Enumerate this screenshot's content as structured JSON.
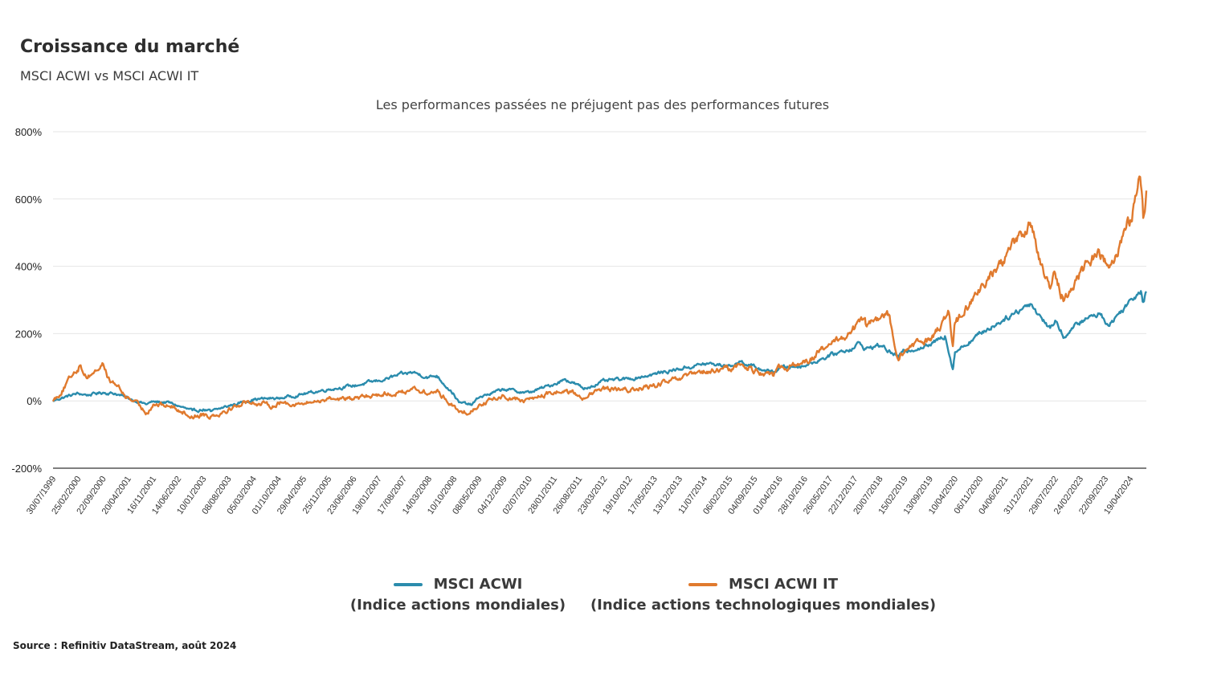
{
  "header": {
    "title": "Croissance du marché",
    "subtitle": "MSCI ACWI vs MSCI ACWI IT",
    "note": "Les performances passées ne préjugent pas des performances futures"
  },
  "source": "Source : Refinitiv DataStream, août 2024",
  "legend": [
    {
      "name": "MSCI ACWI",
      "description": "(Indice actions mondiales)",
      "color": "#2b8cad"
    },
    {
      "name": "MSCI ACWI IT",
      "description": "(Indice actions technologiques mondiales)",
      "color": "#e07a2e"
    }
  ],
  "chart_data": {
    "type": "line",
    "ylim": [
      -200,
      800
    ],
    "y_ticks": [
      800,
      600,
      400,
      200,
      0,
      -200
    ],
    "y_tick_labels": [
      "800%",
      "600%",
      "400%",
      "200%",
      "0%",
      "-200%"
    ],
    "x_range": [
      "1999-07-30",
      "2024-08-31"
    ],
    "x_ticks": [
      "30/07/1999",
      "25/02/2000",
      "22/09/2000",
      "20/04/2001",
      "16/11/2001",
      "14/06/2002",
      "10/01/2003",
      "08/08/2003",
      "05/03/2004",
      "01/10/2004",
      "29/04/2005",
      "25/11/2005",
      "23/06/2006",
      "19/01/2007",
      "17/08/2007",
      "14/03/2008",
      "10/10/2008",
      "08/05/2009",
      "04/12/2009",
      "02/07/2010",
      "28/01/2011",
      "26/08/2011",
      "23/03/2012",
      "19/10/2012",
      "17/05/2013",
      "13/12/2013",
      "11/07/2014",
      "06/02/2015",
      "04/09/2015",
      "01/04/2016",
      "28/10/2016",
      "26/05/2017",
      "22/12/2017",
      "20/07/2018",
      "15/02/2019",
      "13/09/2019",
      "10/04/2020",
      "06/11/2020",
      "04/06/2021",
      "31/12/2021",
      "29/07/2022",
      "24/02/2023",
      "22/09/2023",
      "19/04/2024"
    ],
    "grid": true,
    "legend_position": "bottom",
    "series": [
      {
        "name": "MSCI ACWI",
        "color": "#2b8cad",
        "points": [
          [
            "1999-07-30",
            0
          ],
          [
            "1999-10-15",
            10
          ],
          [
            "2000-02-25",
            22
          ],
          [
            "2000-05-15",
            18
          ],
          [
            "2000-09-22",
            25
          ],
          [
            "2000-12-29",
            22
          ],
          [
            "2001-04-20",
            8
          ],
          [
            "2001-09-21",
            -10
          ],
          [
            "2001-11-16",
            -2
          ],
          [
            "2002-03-29",
            -5
          ],
          [
            "2002-06-14",
            -15
          ],
          [
            "2002-10-10",
            -30
          ],
          [
            "2003-01-10",
            -25
          ],
          [
            "2003-03-12",
            -32
          ],
          [
            "2003-08-08",
            -15
          ],
          [
            "2004-03-05",
            5
          ],
          [
            "2004-10-01",
            8
          ],
          [
            "2005-04-29",
            20
          ],
          [
            "2005-11-25",
            35
          ],
          [
            "2006-06-23",
            45
          ],
          [
            "2007-01-19",
            60
          ],
          [
            "2007-08-17",
            80
          ],
          [
            "2007-10-31",
            85
          ],
          [
            "2008-03-14",
            70
          ],
          [
            "2008-05-19",
            75
          ],
          [
            "2008-10-10",
            20
          ],
          [
            "2008-11-21",
            -5
          ],
          [
            "2009-03-09",
            -12
          ],
          [
            "2009-05-08",
            10
          ],
          [
            "2009-12-04",
            35
          ],
          [
            "2010-05-25",
            25
          ],
          [
            "2010-07-02",
            25
          ],
          [
            "2011-01-28",
            50
          ],
          [
            "2011-05-01",
            65
          ],
          [
            "2011-08-26",
            45
          ],
          [
            "2011-10-04",
            35
          ],
          [
            "2012-03-23",
            60
          ],
          [
            "2012-10-19",
            65
          ],
          [
            "2013-05-17",
            80
          ],
          [
            "2013-12-13",
            95
          ],
          [
            "2014-07-11",
            110
          ],
          [
            "2015-02-06",
            105
          ],
          [
            "2015-05-21",
            118
          ],
          [
            "2015-09-04",
            100
          ],
          [
            "2016-02-11",
            85
          ],
          [
            "2016-04-01",
            98
          ],
          [
            "2016-10-28",
            105
          ],
          [
            "2017-05-26",
            135
          ],
          [
            "2017-12-22",
            160
          ],
          [
            "2018-01-26",
            172
          ],
          [
            "2018-03-23",
            155
          ],
          [
            "2018-07-20",
            165
          ],
          [
            "2018-12-24",
            130
          ],
          [
            "2019-02-15",
            150
          ],
          [
            "2019-09-13",
            165
          ],
          [
            "2020-01-17",
            195
          ],
          [
            "2020-03-23",
            95
          ],
          [
            "2020-04-10",
            145
          ],
          [
            "2020-11-06",
            200
          ],
          [
            "2021-06-04",
            245
          ],
          [
            "2021-12-31",
            290
          ],
          [
            "2022-06-17",
            215
          ],
          [
            "2022-07-29",
            240
          ],
          [
            "2022-10-12",
            190
          ],
          [
            "2023-02-24",
            235
          ],
          [
            "2023-07-31",
            260
          ],
          [
            "2023-10-27",
            225
          ],
          [
            "2024-04-19",
            300
          ],
          [
            "2024-07-16",
            330
          ],
          [
            "2024-08-05",
            295
          ],
          [
            "2024-08-31",
            325
          ]
        ]
      },
      {
        "name": "MSCI ACWI IT",
        "color": "#e07a2e",
        "points": [
          [
            "1999-07-30",
            0
          ],
          [
            "1999-10-15",
            30
          ],
          [
            "2000-01-14",
            80
          ],
          [
            "2000-03-10",
            105
          ],
          [
            "2000-05-15",
            70
          ],
          [
            "2000-07-17",
            90
          ],
          [
            "2000-09-22",
            110
          ],
          [
            "2000-11-15",
            60
          ],
          [
            "2001-01-15",
            45
          ],
          [
            "2001-04-04",
            10
          ],
          [
            "2001-06-01",
            0
          ],
          [
            "2001-09-21",
            -35
          ],
          [
            "2001-11-16",
            -10
          ],
          [
            "2002-03-29",
            -15
          ],
          [
            "2002-06-14",
            -25
          ],
          [
            "2002-10-10",
            -48
          ],
          [
            "2003-01-10",
            -38
          ],
          [
            "2003-03-12",
            -45
          ],
          [
            "2003-08-08",
            -25
          ],
          [
            "2004-01-20",
            0
          ],
          [
            "2004-03-05",
            -5
          ],
          [
            "2004-08-13",
            -15
          ],
          [
            "2004-10-01",
            -5
          ],
          [
            "2005-04-29",
            -10
          ],
          [
            "2005-11-25",
            8
          ],
          [
            "2006-06-23",
            5
          ],
          [
            "2007-01-19",
            20
          ],
          [
            "2007-08-17",
            25
          ],
          [
            "2007-10-31",
            40
          ],
          [
            "2008-03-14",
            20
          ],
          [
            "2008-05-19",
            30
          ],
          [
            "2008-10-10",
            -15
          ],
          [
            "2008-11-21",
            -35
          ],
          [
            "2009-03-09",
            -30
          ],
          [
            "2009-05-08",
            -10
          ],
          [
            "2009-12-04",
            15
          ],
          [
            "2010-05-25",
            0
          ],
          [
            "2010-07-02",
            5
          ],
          [
            "2011-01-28",
            25
          ],
          [
            "2011-05-01",
            30
          ],
          [
            "2011-08-26",
            15
          ],
          [
            "2011-10-04",
            10
          ],
          [
            "2012-03-23",
            35
          ],
          [
            "2012-10-19",
            30
          ],
          [
            "2013-05-17",
            45
          ],
          [
            "2013-12-13",
            65
          ],
          [
            "2014-07-11",
            85
          ],
          [
            "2015-02-06",
            95
          ],
          [
            "2015-05-21",
            108
          ],
          [
            "2015-09-04",
            90
          ],
          [
            "2016-02-11",
            75
          ],
          [
            "2016-04-01",
            95
          ],
          [
            "2016-10-28",
            115
          ],
          [
            "2017-05-26",
            165
          ],
          [
            "2017-12-22",
            215
          ],
          [
            "2018-03-13",
            245
          ],
          [
            "2018-04-02",
            220
          ],
          [
            "2018-07-20",
            245
          ],
          [
            "2018-10-03",
            255
          ],
          [
            "2018-12-24",
            120
          ],
          [
            "2019-02-15",
            150
          ],
          [
            "2019-09-13",
            185
          ],
          [
            "2020-02-19",
            260
          ],
          [
            "2020-03-23",
            165
          ],
          [
            "2020-04-10",
            230
          ],
          [
            "2020-11-06",
            330
          ],
          [
            "2021-06-04",
            430
          ],
          [
            "2021-12-31",
            530
          ],
          [
            "2022-03-14",
            420
          ],
          [
            "2022-06-17",
            330
          ],
          [
            "2022-07-29",
            380
          ],
          [
            "2022-10-12",
            300
          ],
          [
            "2023-02-24",
            380
          ],
          [
            "2023-07-31",
            450
          ],
          [
            "2023-10-27",
            400
          ],
          [
            "2024-04-19",
            540
          ],
          [
            "2024-07-10",
            660
          ],
          [
            "2024-08-05",
            540
          ],
          [
            "2024-08-31",
            625
          ]
        ]
      }
    ]
  }
}
